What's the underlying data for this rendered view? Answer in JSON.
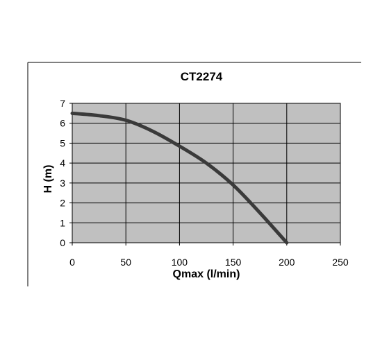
{
  "chart_data": {
    "type": "line",
    "title": "CT2274",
    "xlabel": "Qmax (l/min)",
    "ylabel": "H (m)",
    "xlim": [
      0,
      250
    ],
    "ylim": [
      0,
      7
    ],
    "x_ticks": [
      "0",
      "50",
      "100",
      "150",
      "200",
      "250"
    ],
    "y_ticks": [
      "0",
      "1",
      "2",
      "3",
      "4",
      "5",
      "6",
      "7"
    ],
    "grid": true,
    "legend": "none",
    "series": [
      {
        "x": [
          0,
          25,
          50,
          75,
          100,
          125,
          150,
          175,
          200
        ],
        "y": [
          6.5,
          6.38,
          6.15,
          5.6,
          4.85,
          4.0,
          2.9,
          1.5,
          0.0
        ]
      }
    ],
    "colors": {
      "plot_bg": "#c0c0c0",
      "grid": "#000000",
      "line": "#3a3a3a"
    }
  }
}
